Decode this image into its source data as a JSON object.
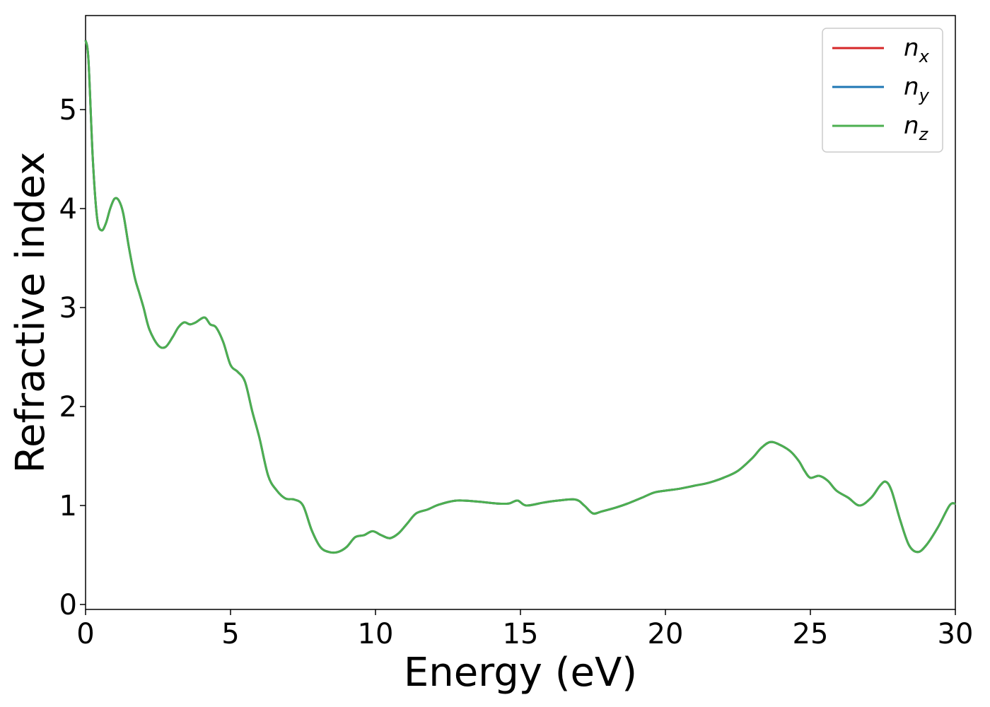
{
  "chart_data": {
    "type": "line",
    "title": "",
    "xlabel": "Energy (eV)",
    "ylabel": "Refractive index",
    "xlim": [
      0,
      30
    ],
    "ylim": [
      -0.05,
      5.95
    ],
    "xticks": [
      0,
      5,
      10,
      15,
      20,
      25,
      30
    ],
    "yticks": [
      0,
      1,
      2,
      3,
      4,
      5
    ],
    "grid": false,
    "legend_position": "top-right",
    "series": [
      {
        "name": "n",
        "subscript": "x",
        "color": "#d62728"
      },
      {
        "name": "n",
        "subscript": "y",
        "color": "#1f77b4"
      },
      {
        "name": "n",
        "subscript": "z",
        "color": "#4caf50"
      }
    ],
    "x": [
      0,
      0.1,
      0.25,
      0.4,
      0.55,
      0.7,
      0.85,
      1.0,
      1.15,
      1.3,
      1.5,
      1.7,
      1.85,
      2.0,
      2.2,
      2.5,
      2.75,
      3.0,
      3.2,
      3.4,
      3.6,
      3.8,
      4.1,
      4.3,
      4.5,
      4.75,
      5.0,
      5.25,
      5.5,
      5.75,
      6.0,
      6.3,
      6.6,
      6.9,
      7.2,
      7.5,
      7.8,
      8.1,
      8.4,
      8.7,
      9.0,
      9.3,
      9.6,
      9.9,
      10.2,
      10.5,
      10.8,
      11.1,
      11.4,
      11.8,
      12.2,
      12.8,
      13.5,
      14.2,
      14.6,
      14.9,
      15.2,
      15.8,
      16.3,
      16.9,
      17.2,
      17.5,
      17.8,
      18.3,
      18.7,
      19.2,
      19.6,
      20.0,
      20.5,
      21.0,
      21.5,
      22.0,
      22.5,
      23.0,
      23.3,
      23.6,
      23.9,
      24.3,
      24.6,
      24.8,
      25.0,
      25.3,
      25.6,
      25.9,
      26.3,
      26.7,
      27.1,
      27.4,
      27.6,
      27.8,
      28.1,
      28.4,
      28.7,
      29.0,
      29.4,
      29.8,
      30.0
    ],
    "y": [
      5.7,
      5.5,
      4.5,
      3.9,
      3.78,
      3.85,
      4.0,
      4.1,
      4.08,
      3.95,
      3.6,
      3.3,
      3.15,
      3.0,
      2.78,
      2.62,
      2.6,
      2.7,
      2.8,
      2.85,
      2.83,
      2.85,
      2.9,
      2.83,
      2.8,
      2.65,
      2.42,
      2.35,
      2.25,
      1.95,
      1.68,
      1.3,
      1.15,
      1.07,
      1.06,
      1.0,
      0.75,
      0.58,
      0.53,
      0.53,
      0.58,
      0.68,
      0.7,
      0.74,
      0.7,
      0.67,
      0.72,
      0.82,
      0.92,
      0.96,
      1.01,
      1.05,
      1.04,
      1.02,
      1.02,
      1.05,
      1.0,
      1.03,
      1.05,
      1.06,
      1.0,
      0.92,
      0.94,
      0.98,
      1.02,
      1.08,
      1.13,
      1.15,
      1.17,
      1.2,
      1.23,
      1.28,
      1.35,
      1.48,
      1.58,
      1.64,
      1.62,
      1.55,
      1.45,
      1.35,
      1.28,
      1.3,
      1.25,
      1.15,
      1.08,
      1.0,
      1.08,
      1.2,
      1.24,
      1.15,
      0.85,
      0.6,
      0.53,
      0.6,
      0.78,
      1.0,
      1.02
    ]
  }
}
